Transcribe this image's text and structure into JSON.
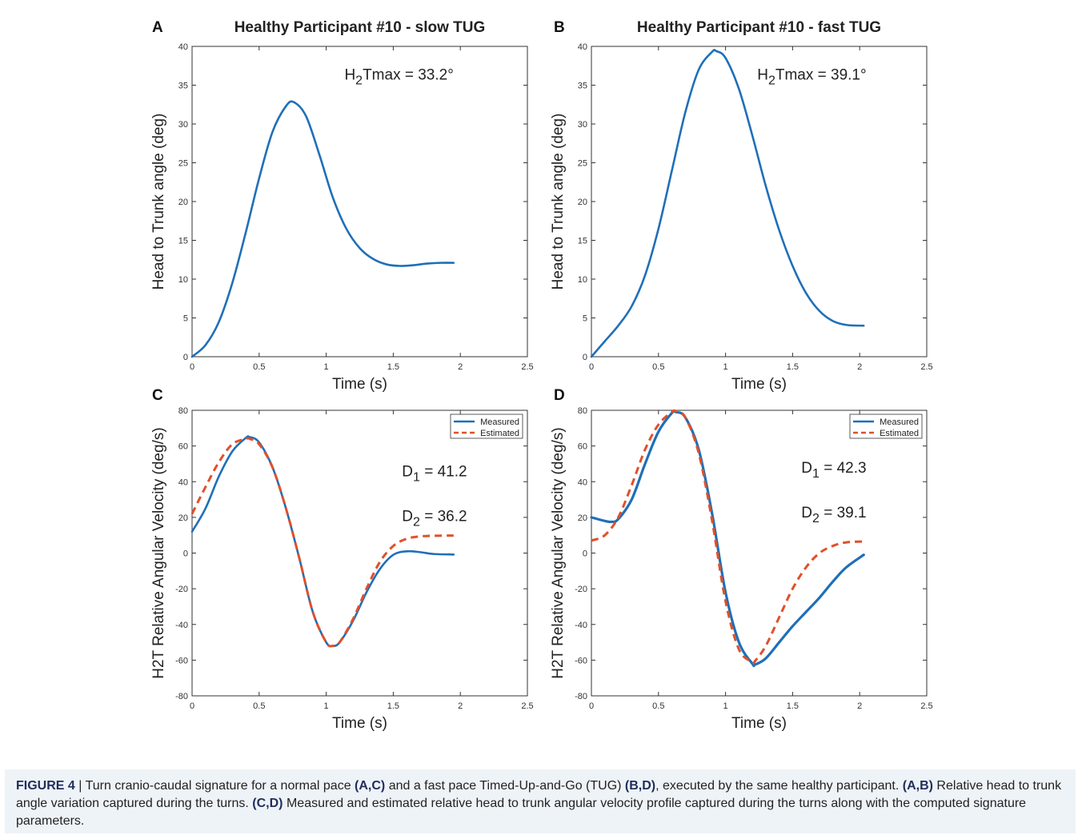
{
  "figure": {
    "caption": {
      "label": "FIGURE 4",
      "separator": " | ",
      "segments": [
        {
          "t": "Turn cranio-caudal signature for a normal pace ",
          "b": false
        },
        {
          "t": "(A,C)",
          "b": true
        },
        {
          "t": " and a fast pace Timed-Up-and-Go (TUG) ",
          "b": false
        },
        {
          "t": "(B,D)",
          "b": true
        },
        {
          "t": ", executed by the same healthy participant. ",
          "b": false
        },
        {
          "t": "(A,B)",
          "b": true
        },
        {
          "t": " Relative head to trunk angle variation captured during the turns. ",
          "b": false
        },
        {
          "t": "(C,D)",
          "b": true
        },
        {
          "t": " Measured and estimated relative head to trunk angular velocity profile captured during the turns along with the computed signature parameters.",
          "b": false
        }
      ]
    }
  },
  "chart_data": [
    {
      "panel": "A",
      "type": "line",
      "title": "Healthy Participant #10 - slow TUG",
      "xlabel": "Time (s)",
      "ylabel": "Head to Trunk angle (deg)",
      "xlim": [
        0,
        2.5
      ],
      "ylim": [
        0,
        40
      ],
      "xticks": [
        0,
        0.5,
        1,
        1.5,
        2,
        2.5
      ],
      "xtick_labels": [
        "0",
        "0.5",
        "1",
        "1.5",
        "2",
        "2.5"
      ],
      "yticks": [
        0,
        5,
        10,
        15,
        20,
        25,
        30,
        35,
        40
      ],
      "grid": false,
      "annotations": [
        {
          "text": "H2Tmax = 33.2°",
          "x": 1.95,
          "y": 35.7
        }
      ],
      "series": [
        {
          "color": "#1f6fb8",
          "dash": false,
          "x": [
            0,
            0.1,
            0.2,
            0.3,
            0.4,
            0.5,
            0.6,
            0.7,
            0.76,
            0.85,
            0.95,
            1.05,
            1.15,
            1.25,
            1.35,
            1.45,
            1.55,
            1.65,
            1.75,
            1.85,
            1.95
          ],
          "y": [
            0,
            1.5,
            4.5,
            9.5,
            16,
            23,
            29,
            32.3,
            32.8,
            31,
            26,
            20.5,
            16.5,
            14,
            12.6,
            11.9,
            11.7,
            11.8,
            12,
            12.1,
            12.1
          ]
        }
      ]
    },
    {
      "panel": "B",
      "type": "line",
      "title": "Healthy Participant #10 - fast TUG",
      "xlabel": "Time (s)",
      "ylabel": "Head to Trunk angle (deg)",
      "xlim": [
        0,
        2.5
      ],
      "ylim": [
        0,
        40
      ],
      "xticks": [
        0,
        0.5,
        1,
        1.5,
        2,
        2.5
      ],
      "xtick_labels": [
        "0",
        "0.5",
        "1",
        "1.5",
        "2",
        "2.5"
      ],
      "yticks": [
        0,
        5,
        10,
        15,
        20,
        25,
        30,
        35,
        40
      ],
      "grid": false,
      "annotations": [
        {
          "text": "H2Tmax = 39.1°",
          "x": 2.05,
          "y": 35.7
        }
      ],
      "series": [
        {
          "color": "#1f6fb8",
          "dash": false,
          "x": [
            0,
            0.1,
            0.2,
            0.3,
            0.4,
            0.5,
            0.6,
            0.7,
            0.8,
            0.9,
            0.93,
            1.0,
            1.1,
            1.2,
            1.3,
            1.4,
            1.5,
            1.6,
            1.7,
            1.8,
            1.9,
            2.03
          ],
          "y": [
            0,
            2,
            4,
            6.5,
            10.5,
            16.5,
            24,
            31.5,
            37,
            39.3,
            39.4,
            38.5,
            34.5,
            28.5,
            22,
            16.3,
            11.7,
            8.2,
            5.9,
            4.6,
            4.1,
            4
          ]
        }
      ]
    },
    {
      "panel": "C",
      "type": "line",
      "title": "",
      "xlabel": "Time (s)",
      "ylabel": "H2T Relative Angular Velocity (deg/s)",
      "xlim": [
        0,
        2.5
      ],
      "ylim": [
        -80,
        80
      ],
      "xticks": [
        0,
        0.5,
        1,
        1.5,
        2,
        2.5
      ],
      "xtick_labels": [
        "0",
        "0.5",
        "1",
        "1.5",
        "2",
        "2.5"
      ],
      "yticks": [
        -80,
        -60,
        -40,
        -20,
        0,
        20,
        40,
        60,
        80
      ],
      "grid": false,
      "legend": "top-right",
      "annotations": [
        {
          "text": "D1 = 41.2",
          "x": 2.05,
          "y": 43
        },
        {
          "text": "D2 = 36.2",
          "x": 2.05,
          "y": 18
        }
      ],
      "series": [
        {
          "name": "Measured",
          "color": "#1f6fb8",
          "dash": false,
          "x": [
            0,
            0.1,
            0.2,
            0.3,
            0.4,
            0.43,
            0.5,
            0.6,
            0.7,
            0.8,
            0.9,
            1.0,
            1.05,
            1.1,
            1.2,
            1.3,
            1.4,
            1.5,
            1.6,
            1.7,
            1.8,
            1.95
          ],
          "y": [
            12,
            25,
            43,
            57,
            64.5,
            65,
            62,
            48,
            25,
            -3,
            -33,
            -50,
            -52,
            -50,
            -38,
            -22,
            -9,
            -1,
            1,
            0.5,
            -0.5,
            -0.8
          ]
        },
        {
          "name": "Estimated",
          "color": "#e0502a",
          "dash": true,
          "x": [
            0,
            0.1,
            0.2,
            0.3,
            0.4,
            0.43,
            0.5,
            0.6,
            0.7,
            0.8,
            0.9,
            1.0,
            1.05,
            1.1,
            1.2,
            1.3,
            1.4,
            1.5,
            1.6,
            1.7,
            1.8,
            1.95
          ],
          "y": [
            22,
            37,
            51,
            61,
            64,
            64,
            61,
            48,
            25,
            -3,
            -33,
            -50,
            -52,
            -50,
            -37,
            -20,
            -5,
            4,
            8,
            9.3,
            9.7,
            9.8
          ]
        }
      ]
    },
    {
      "panel": "D",
      "type": "line",
      "title": "",
      "xlabel": "Time (s)",
      "ylabel": "H2T Relative Angular Velocity (deg/s)",
      "xlim": [
        0,
        2.5
      ],
      "ylim": [
        -80,
        80
      ],
      "xticks": [
        0,
        0.5,
        1,
        1.5,
        2,
        2.5
      ],
      "xtick_labels": [
        "0",
        "0.5",
        "1",
        "1.5",
        "2",
        "2.5"
      ],
      "yticks": [
        -80,
        -60,
        -40,
        -20,
        0,
        20,
        40,
        60,
        80
      ],
      "grid": false,
      "legend": "top-right",
      "annotations": [
        {
          "text": "D1 = 42.3",
          "x": 2.05,
          "y": 45
        },
        {
          "text": "D2 = 39.1",
          "x": 2.05,
          "y": 20
        }
      ],
      "series": [
        {
          "name": "Measured",
          "color": "#1f6fb8",
          "dash": false,
          "x": [
            0,
            0.1,
            0.15,
            0.2,
            0.3,
            0.4,
            0.5,
            0.6,
            0.63,
            0.7,
            0.8,
            0.9,
            1.0,
            1.1,
            1.2,
            1.22,
            1.3,
            1.4,
            1.5,
            1.6,
            1.7,
            1.8,
            1.9,
            2.03
          ],
          "y": [
            20,
            18,
            17.5,
            19,
            30,
            50,
            68,
            78.5,
            79,
            76,
            58,
            22,
            -22,
            -50,
            -62,
            -62.5,
            -59,
            -50,
            -41,
            -33,
            -25,
            -16,
            -8,
            -1
          ]
        },
        {
          "name": "Estimated",
          "color": "#e0502a",
          "dash": true,
          "x": [
            0,
            0.1,
            0.2,
            0.3,
            0.4,
            0.5,
            0.6,
            0.63,
            0.7,
            0.8,
            0.9,
            1.0,
            1.1,
            1.2,
            1.22,
            1.3,
            1.4,
            1.5,
            1.6,
            1.7,
            1.8,
            1.9,
            2.03
          ],
          "y": [
            7,
            10,
            20,
            38,
            58,
            72,
            79,
            79.5,
            76,
            56,
            18,
            -27,
            -54,
            -61,
            -60.5,
            -52,
            -36,
            -20,
            -8,
            0,
            4,
            6,
            6.5
          ]
        }
      ]
    }
  ]
}
